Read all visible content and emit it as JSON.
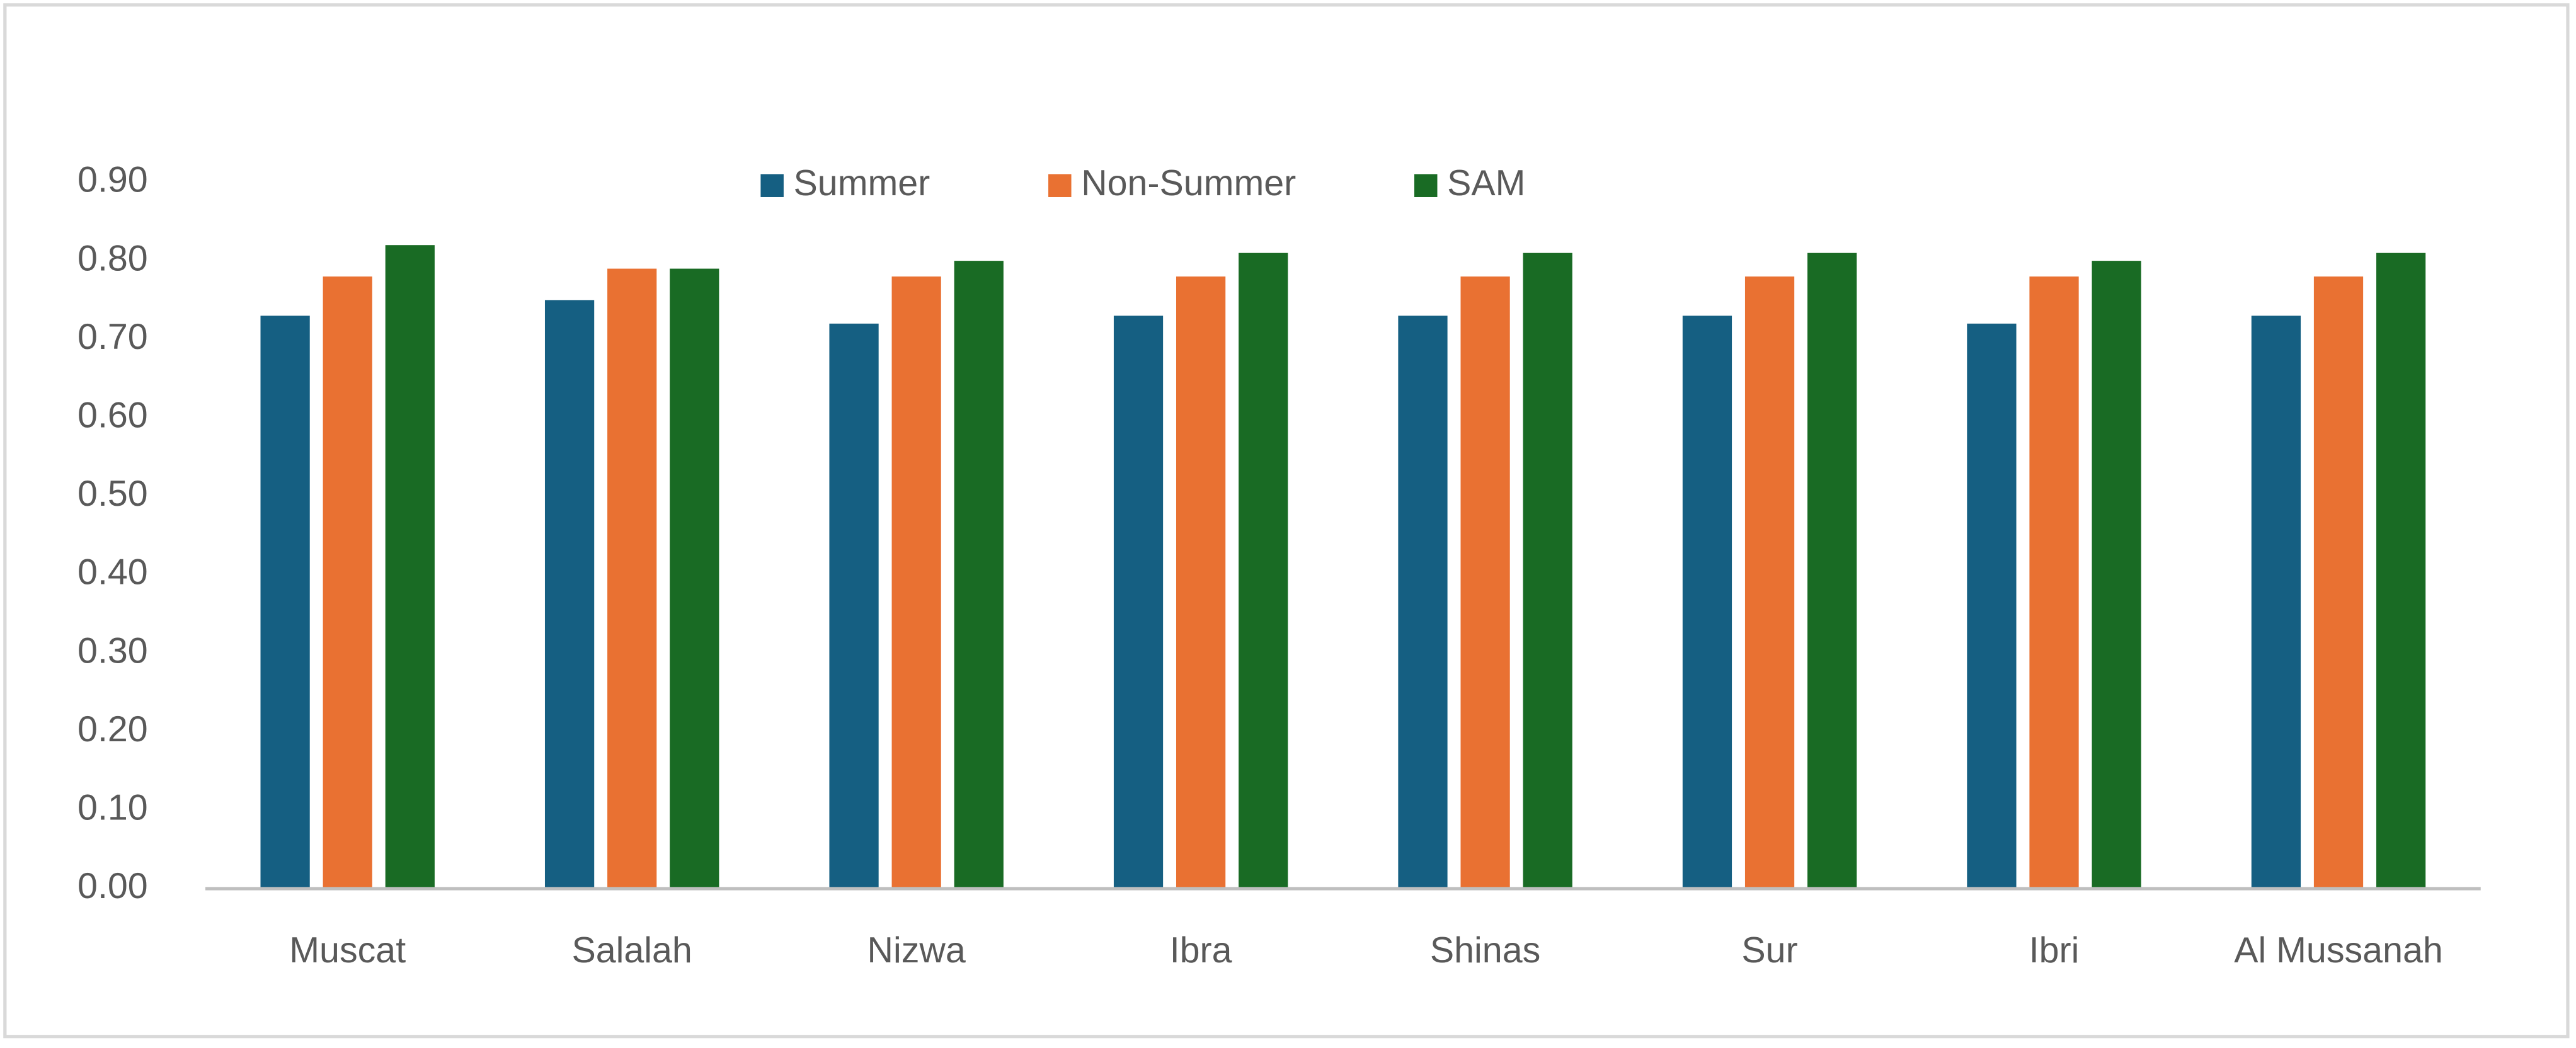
{
  "chart_data": {
    "type": "bar",
    "categories": [
      "Muscat",
      "Salalah",
      "Nizwa",
      "Ibra",
      "Shinas",
      "Sur",
      "Ibri",
      "Al Mussanah"
    ],
    "series": [
      {
        "name": "Summer",
        "color": "#155f82",
        "values": [
          0.73,
          0.75,
          0.72,
          0.73,
          0.73,
          0.73,
          0.72,
          0.73
        ]
      },
      {
        "name": "Non-Summer",
        "color": "#e97132",
        "values": [
          0.78,
          0.79,
          0.78,
          0.78,
          0.78,
          0.78,
          0.78,
          0.78
        ]
      },
      {
        "name": "SAM",
        "color": "#196b24",
        "values": [
          0.82,
          0.79,
          0.8,
          0.81,
          0.81,
          0.81,
          0.8,
          0.81
        ]
      }
    ],
    "ylim": [
      0,
      0.9
    ],
    "yticks": [
      {
        "value": 0,
        "label": "0.00"
      },
      {
        "value": 0.1,
        "label": "0.10"
      },
      {
        "value": 0.2,
        "label": "0.20"
      },
      {
        "value": 0.3,
        "label": "0.30"
      },
      {
        "value": 0.4,
        "label": "0.40"
      },
      {
        "value": 0.5,
        "label": "0.50"
      },
      {
        "value": 0.6,
        "label": "0.60"
      },
      {
        "value": 0.7,
        "label": "0.70"
      },
      {
        "value": 0.8,
        "label": "0.80"
      },
      {
        "value": 0.9,
        "label": "0.90"
      }
    ],
    "grid": false,
    "legend": "top"
  }
}
